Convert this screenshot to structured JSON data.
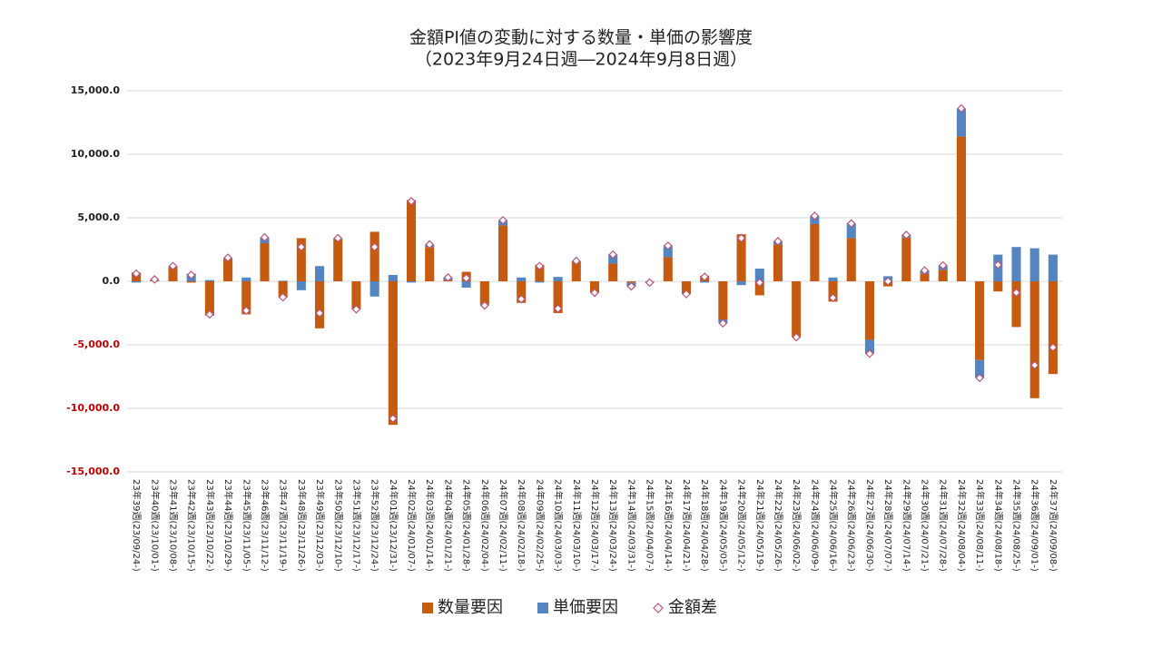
{
  "chart_data": {
    "type": "bar",
    "stacked": true,
    "title": "金額PI値の変動に対する数量・単価の影響度",
    "subtitle": "（2023年9月24日週―2024年9月8日週）",
    "categories": [
      "23年39週(23/09/24-)",
      "23年40週(23/10/01-)",
      "23年41週(23/10/08-)",
      "23年42週(23/10/15-)",
      "23年43週(23/10/22-)",
      "23年44週(23/10/29-)",
      "23年45週(23/11/05-)",
      "23年46週(23/11/12-)",
      "23年47週(23/11/19-)",
      "23年48週(23/11/26-)",
      "23年49週(23/12/03-)",
      "23年50週(23/12/10-)",
      "23年51週(23/12/17-)",
      "23年52週(23/12/24-)",
      "24年01週(23/12/31-)",
      "24年02週(24/01/07-)",
      "24年03週(24/01/14-)",
      "24年04週(24/01/21-)",
      "24年05週(24/01/28-)",
      "24年06週(24/02/04-)",
      "24年07週(24/02/11-)",
      "24年08週(24/02/18-)",
      "24年09週(24/02/25-)",
      "24年10週(24/03/03-)",
      "24年11週(24/03/10-)",
      "24年12週(24/03/17-)",
      "24年13週(24/03/24-)",
      "24年14週(24/03/31-)",
      "24年15週(24/04/07-)",
      "24年16週(24/04/14-)",
      "24年17週(24/04/21-)",
      "24年18週(24/04/28-)",
      "24年19週(24/05/05-)",
      "24年20週(24/05/12-)",
      "24年21週(24/05/19-)",
      "24年22週(24/05/26-)",
      "24年23週(24/06/02-)",
      "24年24週(24/06/09-)",
      "24年25週(24/06/16-)",
      "24年26週(24/06/23-)",
      "24年27週(24/06/30-)",
      "24年28週(24/07/07-)",
      "24年29週(24/07/14-)",
      "24年30週(24/07/21-)",
      "24年31週(24/07/28-)",
      "24年32週(24/08/04-)",
      "24年33週(24/08/11-)",
      "24年34週(24/08/18-)",
      "24年35週(24/08/25-)",
      "24年36週(24/09/01-)",
      "24年37週(24/09/08-)"
    ],
    "series": [
      {
        "name": "数量要因",
        "color": "#c55a11",
        "values": [
          700,
          100,
          1100,
          -100,
          -2700,
          1800,
          -2600,
          3000,
          -1300,
          3400,
          -3700,
          3300,
          -2200,
          3900,
          -11300,
          6400,
          2700,
          100,
          750,
          -1800,
          4400,
          -1700,
          1300,
          -2500,
          1550,
          -900,
          1400,
          -100,
          -50,
          1900,
          -1000,
          450,
          -3000,
          3700,
          -1100,
          2900,
          -4400,
          4500,
          -1600,
          3400,
          -4600,
          -400,
          3450,
          600,
          900,
          11400,
          -6200,
          -800,
          -3600,
          -9200,
          -7300
        ]
      },
      {
        "name": "単価要因",
        "color": "#5585c0",
        "values": [
          -100,
          50,
          100,
          600,
          100,
          50,
          300,
          450,
          50,
          -700,
          1200,
          100,
          0,
          -1200,
          500,
          -100,
          200,
          200,
          -500,
          -100,
          400,
          300,
          -100,
          350,
          50,
          0,
          700,
          -300,
          -50,
          900,
          0,
          -100,
          -300,
          -300,
          1000,
          250,
          0,
          650,
          300,
          1150,
          -1100,
          400,
          200,
          250,
          350,
          2200,
          -1400,
          2100,
          2700,
          2600,
          2100
        ]
      }
    ],
    "line": {
      "name": "金額差",
      "color": "#b5577a",
      "marker": "diamond",
      "values": [
        600,
        150,
        1200,
        500,
        -2600,
        1850,
        -2300,
        3450,
        -1250,
        2700,
        -2500,
        3400,
        -2200,
        2700,
        -10800,
        6300,
        2900,
        300,
        250,
        -1900,
        4800,
        -1400,
        1200,
        -2150,
        1600,
        -900,
        2100,
        -400,
        -100,
        2800,
        -1000,
        350,
        -3300,
        3400,
        -100,
        3150,
        -4400,
        5150,
        -1300,
        4550,
        -5700,
        0,
        3650,
        850,
        1250,
        13600,
        -7600,
        1300,
        -900,
        -6600,
        -5200
      ]
    },
    "ylim": [
      -15000,
      15000
    ],
    "yticks": [
      {
        "value": -15000,
        "label": "-15,000.0"
      },
      {
        "value": -10000,
        "label": "-10,000.0"
      },
      {
        "value": -5000,
        "label": "-5,000.0"
      },
      {
        "value": 0,
        "label": "0.0"
      },
      {
        "value": 5000,
        "label": "5,000.0"
      },
      {
        "value": 10000,
        "label": "10,000.0"
      },
      {
        "value": 15000,
        "label": "15,000.0"
      }
    ],
    "negative_tick_color": "#c00000",
    "grid": true,
    "legend": "bottom"
  }
}
